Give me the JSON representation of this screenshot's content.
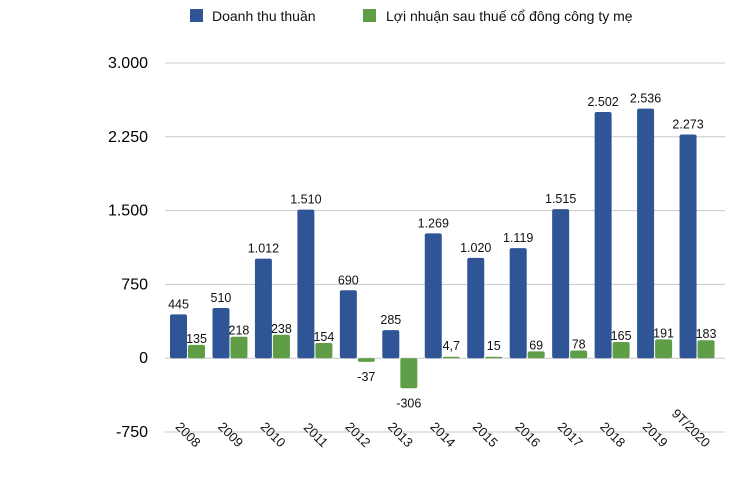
{
  "chart_data": {
    "type": "bar",
    "title": "",
    "xlabel": "",
    "ylabel": "",
    "ylim": [
      -750,
      3000
    ],
    "yticks": [
      -750,
      0,
      750,
      1500,
      2250,
      3000
    ],
    "ytick_labels": [
      "-750",
      "0",
      "750",
      "1.500",
      "2.250",
      "3.000"
    ],
    "grid": "horizontal",
    "legend_position": "top",
    "categories": [
      "2008",
      "2009",
      "2010",
      "2011",
      "2012",
      "2013",
      "2014",
      "2015",
      "2016",
      "2017",
      "2018",
      "2019",
      "9T/2020"
    ],
    "series": [
      {
        "name": "Doanh thu thuần",
        "color": "#2f5597",
        "values": [
          445,
          510,
          1012,
          1510,
          690,
          285,
          1269,
          1020,
          1119,
          1515,
          2502,
          2536,
          2273
        ],
        "labels": [
          "445",
          "510",
          "1.012",
          "1.510",
          "690",
          "285",
          "1.269",
          "1.020",
          "1.119",
          "1.515",
          "2.502",
          "2.536",
          "2.273"
        ]
      },
      {
        "name": "Lợi nhuận sau thuế cổ đông công ty mẹ",
        "color": "#5f9e47",
        "values": [
          135,
          218,
          238,
          154,
          -37,
          -306,
          4.7,
          15,
          69,
          78,
          165,
          191,
          183
        ],
        "labels": [
          "135",
          "218",
          "238",
          "154",
          "-37",
          "-306",
          "4,7",
          "15",
          "69",
          "78",
          "165",
          "191",
          "183"
        ]
      }
    ]
  }
}
